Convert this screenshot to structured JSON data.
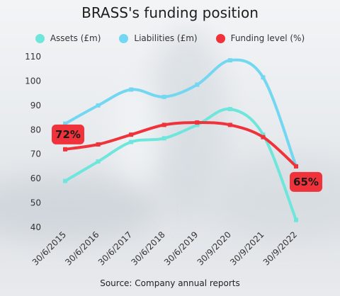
{
  "title": "BRASS's funding position",
  "source": "Source: Company annual reports",
  "legend": [
    {
      "label": "Assets (£m)",
      "color": "#6ee6dc"
    },
    {
      "label": "Liabilities (£m)",
      "color": "#74d7f2"
    },
    {
      "label": "Funding level (%)",
      "color": "#f0323a"
    }
  ],
  "chart_data": {
    "type": "line",
    "categories": [
      "30/6/2015",
      "30/6/2016",
      "30/6/2017",
      "30/6/2018",
      "30/6/2019",
      "30/9/2020",
      "30/9/2021",
      "30/9/2022"
    ],
    "ylim": [
      40,
      110
    ],
    "yticks": [
      40,
      50,
      60,
      70,
      80,
      90,
      100,
      110
    ],
    "grid": false,
    "legend_position": "top",
    "series": [
      {
        "name": "Assets (£m)",
        "color": "#6ee6dc",
        "values": [
          59,
          67,
          75,
          76.5,
          82,
          88.5,
          78,
          43
        ]
      },
      {
        "name": "Liabilities (£m)",
        "color": "#74d7f2",
        "values": [
          82.5,
          90,
          96.5,
          93.5,
          98.5,
          108.5,
          101.5,
          65
        ]
      },
      {
        "name": "Funding level (%)",
        "color": "#f0323a",
        "values": [
          72,
          74,
          78,
          82,
          83,
          82,
          77,
          65
        ]
      }
    ],
    "annotations": [
      {
        "text": "72%",
        "category_index": 0,
        "series": 2
      },
      {
        "text": "65%",
        "category_index": 7,
        "series": 2
      }
    ]
  }
}
